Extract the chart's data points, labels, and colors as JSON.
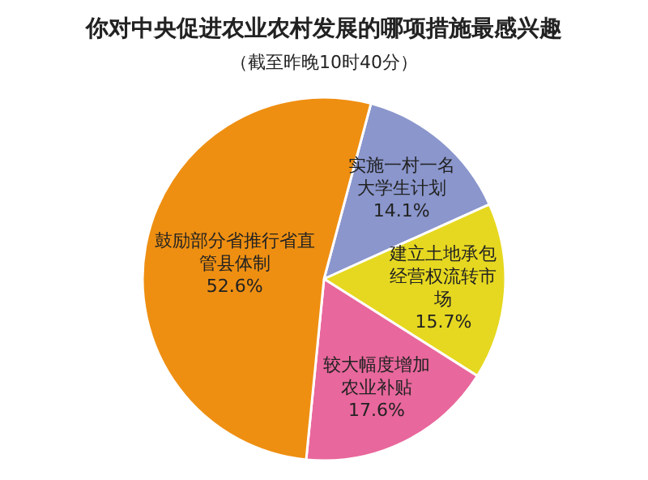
{
  "chart_data": {
    "type": "pie",
    "title": "你对中央促进农业农村发展的哪项措施最感兴趣",
    "subtitle": "（截至昨晚10时40分）",
    "categories": [
      "实施一村一名大学生计划",
      "建立土地承包经营权流转市场",
      "较大幅度增加农业补贴",
      "鼓励部分省推行省直管县体制"
    ],
    "values": [
      14.1,
      15.7,
      17.6,
      52.6
    ],
    "value_labels": [
      "14.1%",
      "15.7%",
      "17.6%",
      "52.6%"
    ],
    "colors": [
      "#8a96cc",
      "#e6d820",
      "#e8679c",
      "#ee8f12"
    ],
    "legend": false
  }
}
